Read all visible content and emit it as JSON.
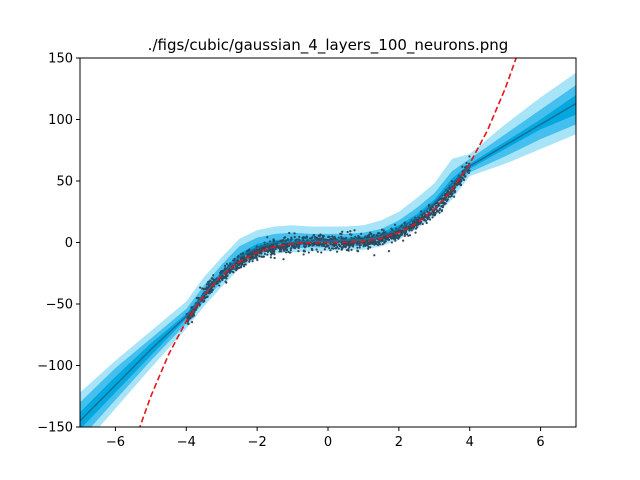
{
  "chart_data": {
    "type": "line",
    "title": "./figs/cubic/gaussian_4_layers_100_neurons.png",
    "xlabel": "",
    "ylabel": "",
    "xlim": [
      -7,
      7
    ],
    "ylim": [
      -150,
      150
    ],
    "x_ticks": [
      -6,
      -4,
      -2,
      0,
      2,
      4,
      6
    ],
    "y_ticks": [
      -150,
      -100,
      -50,
      0,
      50,
      100,
      150
    ],
    "x_tick_labels": [
      "−6",
      "−4",
      "−2",
      "0",
      "2",
      "4",
      "6"
    ],
    "y_tick_labels": [
      "−150",
      "−100",
      "−50",
      "0",
      "50",
      "100",
      "150"
    ],
    "grid": false,
    "legend": "none",
    "colors": {
      "mean_line": "#1a6e96",
      "band_inner": "#00a8e0",
      "band_middle": "#45c0ee",
      "band_outer": "#a8e4f8",
      "data_points": "#2a4a5e",
      "true_function": "#e8141c"
    },
    "series": [
      {
        "kind": "band",
        "sigma": 3,
        "x": [
          -7,
          -6,
          -5,
          -4,
          -3.5,
          -3,
          -2.5,
          -2,
          -1.5,
          -1,
          -0.5,
          0,
          0.5,
          1,
          1.5,
          2,
          2.5,
          3,
          3.5,
          4,
          5,
          6,
          7
        ],
        "lower": [
          -168,
          -135,
          -102,
          -70,
          -52,
          -36,
          -21,
          -13,
          -9,
          -8,
          -7,
          -7,
          -6,
          -6,
          -3,
          2,
          11,
          21,
          35,
          54,
          64,
          76,
          88
        ],
        "upper": [
          -122,
          -96,
          -72,
          -48,
          -28,
          -12,
          3,
          10,
          13,
          14,
          13,
          13,
          13,
          14,
          18,
          25,
          36,
          48,
          68,
          72,
          96,
          118,
          138
        ]
      },
      {
        "kind": "band",
        "sigma": 2,
        "x": [
          -7,
          -6,
          -5,
          -4,
          -3.5,
          -3,
          -2.5,
          -2,
          -1.5,
          -1,
          -0.5,
          0,
          0.5,
          1,
          1.5,
          2,
          2.5,
          3,
          3.5,
          4,
          5,
          6,
          7
        ],
        "lower": [
          -160,
          -128,
          -96,
          -66,
          -48,
          -32,
          -18,
          -10,
          -6,
          -5,
          -4,
          -4,
          -3,
          -3,
          0,
          5,
          14,
          25,
          40,
          57,
          70,
          84,
          96
        ],
        "upper": [
          -130,
          -102,
          -78,
          -54,
          -35,
          -18,
          -3,
          4,
          7,
          8,
          7,
          7,
          7,
          8,
          11,
          18,
          28,
          40,
          58,
          68,
          88,
          108,
          128
        ]
      },
      {
        "kind": "band",
        "sigma": 1,
        "x": [
          -7,
          -6,
          -5,
          -4,
          -3.5,
          -3,
          -2.5,
          -2,
          -1.5,
          -1,
          -0.5,
          0,
          0.5,
          1,
          1.5,
          2,
          2.5,
          3,
          3.5,
          4,
          5,
          6,
          7
        ],
        "lower": [
          -152,
          -122,
          -92,
          -62,
          -45,
          -28,
          -14,
          -6,
          -3,
          -2,
          -1,
          -1,
          0,
          0,
          3,
          9,
          18,
          30,
          45,
          60,
          76,
          92,
          104
        ],
        "upper": [
          -138,
          -109,
          -82,
          -58,
          -40,
          -23,
          -9,
          -1,
          2,
          3,
          3,
          3,
          4,
          5,
          8,
          14,
          23,
          35,
          52,
          64,
          82,
          100,
          120
        ]
      },
      {
        "kind": "mean",
        "x": [
          -7,
          -6,
          -5,
          -4,
          -3.5,
          -3,
          -2.5,
          -2,
          -1.5,
          -1,
          -0.5,
          0,
          0.5,
          1,
          1.5,
          2,
          2.5,
          3,
          3.5,
          4,
          5,
          6,
          7
        ],
        "y": [
          -145,
          -116,
          -87,
          -60,
          -42,
          -26,
          -12,
          -4,
          0,
          0,
          1,
          1,
          2,
          2,
          5,
          11,
          20,
          32,
          48,
          62,
          79,
          96,
          113
        ]
      },
      {
        "kind": "true_function",
        "x": [
          -5.35,
          -5,
          -4.5,
          -4,
          -3.5,
          -3,
          -2.5,
          -2,
          -1.5,
          -1,
          -0.5,
          0,
          0.5,
          1,
          1.5,
          2,
          2.5,
          3,
          3.5,
          4,
          4.5,
          5,
          5.35
        ],
        "y": [
          -153.1,
          -125,
          -91.1,
          -64,
          -42.9,
          -27,
          -15.6,
          -8,
          -3.4,
          -1,
          -0.1,
          0,
          0.1,
          1,
          3.4,
          8,
          15.6,
          27,
          42.9,
          64,
          91.1,
          125,
          153.1
        ]
      }
    ],
    "scatter": {
      "x_range": [
        -4,
        4
      ],
      "count": 1500,
      "noise_sd": 3
    }
  }
}
